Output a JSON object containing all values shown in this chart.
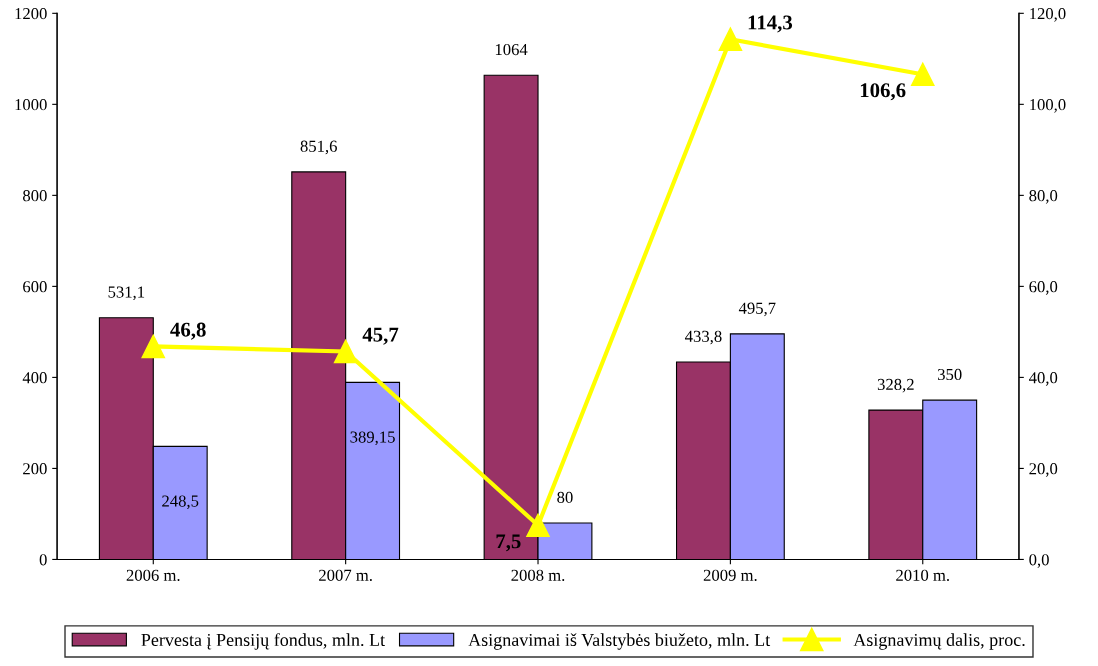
{
  "chart_data": {
    "type": "bar",
    "categories": [
      "2006 m.",
      "2007 m.",
      "2008 m.",
      "2009 m.",
      "2010 m."
    ],
    "series": [
      {
        "name": "Pervesta į Pensijų fondus, mln. Lt",
        "color": "#993366",
        "values": [
          531.1,
          851.6,
          1064,
          433.8,
          328.2
        ],
        "value_labels": [
          "531,1",
          "851,6",
          "1064",
          "433,8",
          "328,2"
        ]
      },
      {
        "name": "Asignavimai iš Valstybės biužeto, mln. Lt",
        "color": "#9999ff",
        "values": [
          248.5,
          389.15,
          80,
          495.7,
          350
        ],
        "value_labels": [
          "248,5",
          "389,15",
          "80",
          "495,7",
          "350"
        ]
      },
      {
        "name": "Asignavimų dalis, proc.",
        "type": "line",
        "axis": "y2",
        "color": "#ffff00",
        "marker": "triangle",
        "values": [
          46.8,
          45.7,
          7.5,
          114.3,
          106.6
        ],
        "value_labels": [
          "46,8",
          "45,7",
          "7,5",
          "114,3",
          "106,6"
        ]
      }
    ],
    "ylim": [
      0,
      1200
    ],
    "yticks": [
      0,
      200,
      400,
      600,
      800,
      1000,
      1200
    ],
    "y2lim": [
      0,
      120
    ],
    "y2ticks": [
      {
        "value": 0,
        "label": "0,0"
      },
      {
        "value": 20,
        "label": "20,0"
      },
      {
        "value": 40,
        "label": "40,0"
      },
      {
        "value": 60,
        "label": "60,0"
      },
      {
        "value": 80,
        "label": "80,0"
      },
      {
        "value": 100,
        "label": "100,0"
      },
      {
        "value": 120,
        "label": "120,0"
      }
    ],
    "grid": false,
    "legend": "bottom"
  }
}
